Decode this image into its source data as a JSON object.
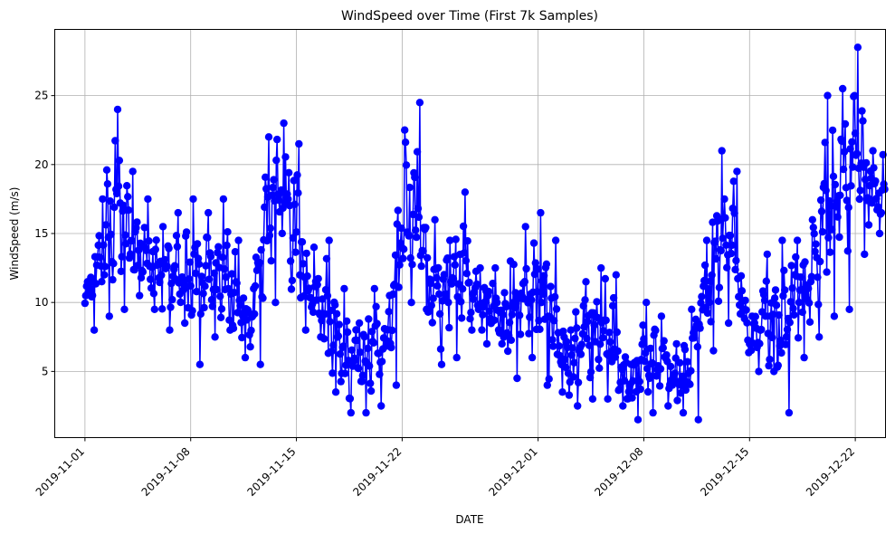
{
  "chart_data": {
    "type": "line",
    "title": "WindSpeed over Time (First 7k Samples)",
    "xlabel": "DATE",
    "ylabel": "WindSpeed (m/s)",
    "x_ticks": [
      "2019-11-01",
      "2019-11-08",
      "2019-11-15",
      "2019-11-22",
      "2019-12-01",
      "2019-12-08",
      "2019-12-15",
      "2019-12-22"
    ],
    "y_ticks": [
      5,
      10,
      15,
      20,
      25
    ],
    "xlim": [
      "2019-10-30",
      "2019-12-24"
    ],
    "ylim": [
      0.2,
      29.8
    ],
    "grid": true,
    "marker": "circle",
    "series": [
      {
        "color": "#0000ff",
        "x": [
          "2019-11-01",
          "2019-11-02",
          "2019-11-03",
          "2019-11-04",
          "2019-11-05",
          "2019-11-06",
          "2019-11-07",
          "2019-11-08",
          "2019-11-09",
          "2019-11-10",
          "2019-11-11",
          "2019-11-12",
          "2019-11-13",
          "2019-11-14",
          "2019-11-15",
          "2019-11-16",
          "2019-11-17",
          "2019-11-18",
          "2019-11-19",
          "2019-11-20",
          "2019-11-21",
          "2019-11-22",
          "2019-11-23",
          "2019-11-24",
          "2019-11-25",
          "2019-11-26",
          "2019-11-27",
          "2019-11-28",
          "2019-11-29",
          "2019-11-30",
          "2019-12-01",
          "2019-12-02",
          "2019-12-03",
          "2019-12-04",
          "2019-12-05",
          "2019-12-06",
          "2019-12-07",
          "2019-12-08",
          "2019-12-09",
          "2019-12-10",
          "2019-12-11",
          "2019-12-12",
          "2019-12-13",
          "2019-12-14",
          "2019-12-15",
          "2019-12-16",
          "2019-12-17",
          "2019-12-18",
          "2019-12-19",
          "2019-12-20",
          "2019-12-21",
          "2019-12-22",
          "2019-12-23"
        ],
        "min": [
          8.0,
          9.0,
          9.5,
          10.5,
          9.5,
          8.0,
          8.5,
          5.5,
          7.5,
          8.0,
          6.0,
          5.5,
          10.0,
          13.0,
          8.0,
          7.5,
          3.5,
          2.0,
          2.0,
          2.5,
          4.0,
          10.0,
          9.5,
          5.5,
          6.0,
          8.0,
          7.0,
          7.0,
          4.5,
          6.0,
          4.0,
          3.5,
          2.5,
          3.0,
          3.0,
          2.5,
          1.5,
          2.0,
          2.5,
          2.0,
          1.5,
          6.5,
          8.5,
          9.5,
          5.0,
          5.0,
          2.0,
          6.0,
          7.5,
          9.0,
          9.5,
          13.5,
          15.0
        ],
        "max": [
          11.5,
          17.5,
          24.0,
          19.5,
          17.5,
          15.5,
          16.5,
          17.5,
          16.5,
          17.5,
          14.5,
          11.0,
          22.0,
          23.0,
          21.5,
          14.0,
          14.5,
          11.0,
          8.5,
          11.0,
          10.5,
          22.5,
          24.5,
          16.0,
          14.5,
          18.0,
          12.5,
          12.5,
          13.0,
          15.5,
          16.5,
          14.5,
          8.0,
          11.5,
          12.5,
          12.0,
          5.5,
          10.0,
          9.0,
          7.0,
          9.5,
          14.5,
          21.0,
          19.5,
          9.0,
          13.5,
          14.5,
          14.5,
          16.0,
          25.0,
          25.5,
          28.5,
          21.0
        ]
      }
    ]
  }
}
